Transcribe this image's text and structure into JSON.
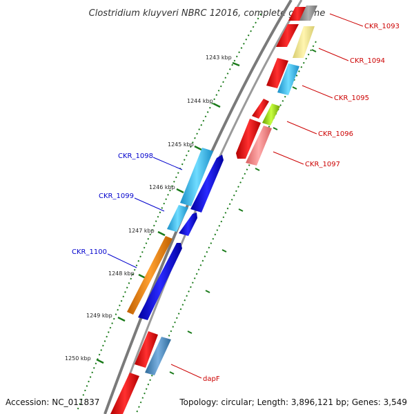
{
  "title": "Clostridium kluyveri NBRC 12016, complete genome",
  "footer": {
    "accession": "Accession: NC_011837",
    "summary": "Topology: circular; Length: 3,896,121 bp; Genes: 3,549"
  },
  "scale_marks": [
    "1243 kbp",
    "1244 kbp",
    "1245 kbp",
    "1246 kbp",
    "1247 kbp",
    "1248 kbp",
    "1249 kbp",
    "1250 kbp"
  ],
  "colors": {
    "label_forward": "#cc0000",
    "label_reverse": "#0000cc",
    "backbone": "#808080",
    "tick": "#1a7a1a"
  },
  "gene_labels": {
    "ckr_1093": "CKR_1093",
    "ckr_1094": "CKR_1094",
    "ckr_1095": "CKR_1095",
    "ckr_1096": "CKR_1096",
    "ckr_1097": "CKR_1097",
    "ckr_1098": "CKR_1098",
    "ckr_1099": "CKR_1099",
    "ckr_1100": "CKR_1100",
    "dapf": "dapF"
  }
}
